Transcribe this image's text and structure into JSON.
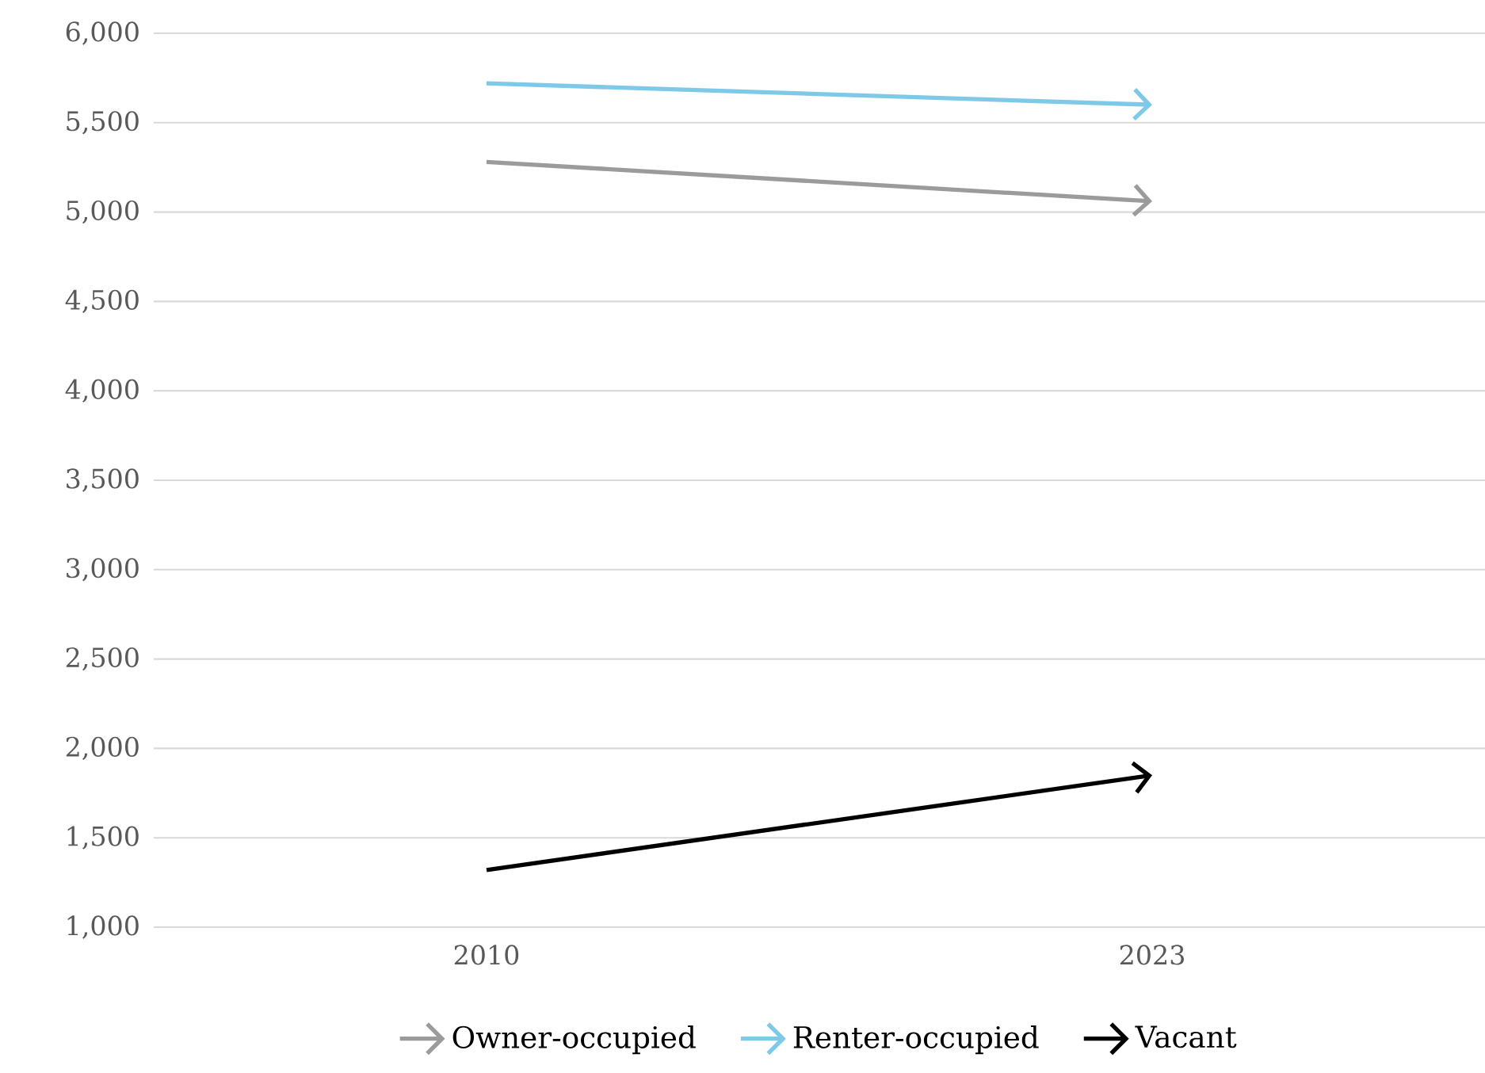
{
  "chart_data": {
    "type": "line",
    "categories": [
      "2010",
      "2023"
    ],
    "series": [
      {
        "name": "Owner-occupied",
        "color": "#9b9b9b",
        "values": [
          5280,
          5060
        ]
      },
      {
        "name": "Renter-occupied",
        "color": "#7ec8e8",
        "values": [
          5720,
          5600
        ]
      },
      {
        "name": "Vacant",
        "color": "#000000",
        "values": [
          1320,
          1850
        ]
      }
    ],
    "ylim": [
      1000,
      6000
    ],
    "yticks": [
      {
        "value": 1000,
        "label": "1,000"
      },
      {
        "value": 1500,
        "label": "1,500"
      },
      {
        "value": 2000,
        "label": "2,000"
      },
      {
        "value": 2500,
        "label": "2,500"
      },
      {
        "value": 3000,
        "label": "3,000"
      },
      {
        "value": 3500,
        "label": "3,500"
      },
      {
        "value": 4000,
        "label": "4,000"
      },
      {
        "value": 4500,
        "label": "4,500"
      },
      {
        "value": 5000,
        "label": "5,000"
      },
      {
        "value": 5500,
        "label": "5,500"
      },
      {
        "value": 6000,
        "label": "6,000"
      }
    ],
    "grid": "y",
    "legend": "bottom",
    "line_style": "solid"
  }
}
